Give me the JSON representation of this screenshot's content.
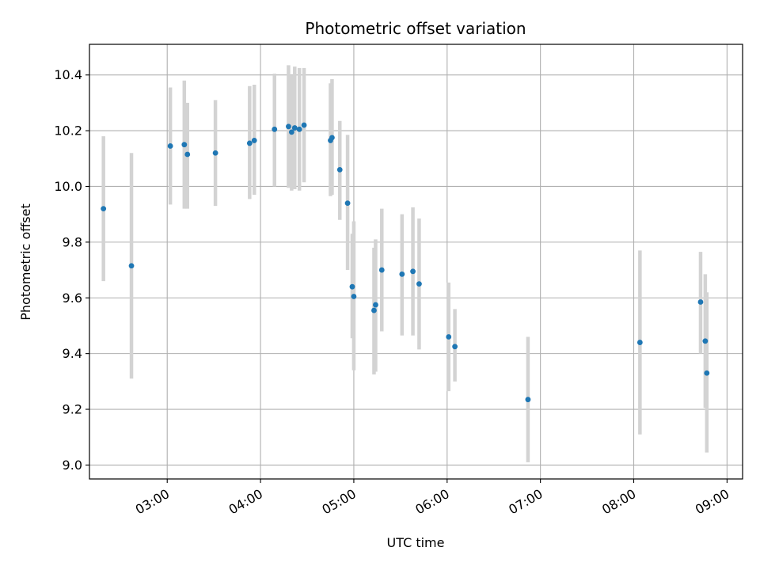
{
  "chart_data": {
    "type": "scatter",
    "title": "Photometric offset variation",
    "xlabel": "UTC time",
    "ylabel": "Photometric offset",
    "grid": true,
    "xlim": [
      "02:10",
      "09:10"
    ],
    "ylim": [
      8.95,
      10.51
    ],
    "x_ticks": [
      "03:00",
      "04:00",
      "05:00",
      "06:00",
      "07:00",
      "08:00",
      "09:00"
    ],
    "y_ticks": [
      9.0,
      9.2,
      9.4,
      9.6,
      9.8,
      10.0,
      10.2,
      10.4
    ],
    "y_tick_labels": [
      "9.0",
      "9.2",
      "9.4",
      "9.6",
      "9.8",
      "10.0",
      "10.2",
      "10.4"
    ],
    "colors": {
      "points": "#1f77b4",
      "errorbars": "#d3d3d3",
      "grid": "#b0b0b0"
    },
    "series": [
      {
        "points": [
          {
            "x": "02:19",
            "y": 9.92,
            "ylo": 9.66,
            "yhi": 10.18
          },
          {
            "x": "02:37",
            "y": 9.715,
            "ylo": 9.31,
            "yhi": 10.12
          },
          {
            "x": "03:02",
            "y": 10.145,
            "ylo": 9.935,
            "yhi": 10.355
          },
          {
            "x": "03:11",
            "y": 10.15,
            "ylo": 9.92,
            "yhi": 10.38
          },
          {
            "x": "03:13",
            "y": 10.115,
            "ylo": 9.92,
            "yhi": 10.3
          },
          {
            "x": "03:31",
            "y": 10.12,
            "ylo": 9.93,
            "yhi": 10.31
          },
          {
            "x": "03:53",
            "y": 10.155,
            "ylo": 9.955,
            "yhi": 10.36
          },
          {
            "x": "03:56",
            "y": 10.165,
            "ylo": 9.97,
            "yhi": 10.365
          },
          {
            "x": "04:09",
            "y": 10.205,
            "ylo": 10.0,
            "yhi": 10.405
          },
          {
            "x": "04:18",
            "y": 10.215,
            "ylo": 9.995,
            "yhi": 10.435
          },
          {
            "x": "04:20",
            "y": 10.195,
            "ylo": 9.985,
            "yhi": 10.4
          },
          {
            "x": "04:22",
            "y": 10.21,
            "ylo": 9.99,
            "yhi": 10.43
          },
          {
            "x": "04:25",
            "y": 10.205,
            "ylo": 9.985,
            "yhi": 10.425
          },
          {
            "x": "04:28",
            "y": 10.22,
            "ylo": 10.015,
            "yhi": 10.425
          },
          {
            "x": "04:45",
            "y": 10.165,
            "ylo": 9.965,
            "yhi": 10.37
          },
          {
            "x": "04:46",
            "y": 10.175,
            "ylo": 9.97,
            "yhi": 10.385
          },
          {
            "x": "04:51",
            "y": 10.06,
            "ylo": 9.88,
            "yhi": 10.235
          },
          {
            "x": "04:56",
            "y": 9.94,
            "ylo": 9.7,
            "yhi": 10.185
          },
          {
            "x": "04:59",
            "y": 9.64,
            "ylo": 9.455,
            "yhi": 9.83
          },
          {
            "x": "05:00",
            "y": 9.605,
            "ylo": 9.34,
            "yhi": 9.875
          },
          {
            "x": "05:13",
            "y": 9.555,
            "ylo": 9.325,
            "yhi": 9.78
          },
          {
            "x": "05:14",
            "y": 9.575,
            "ylo": 9.335,
            "yhi": 9.81
          },
          {
            "x": "05:18",
            "y": 9.7,
            "ylo": 9.48,
            "yhi": 9.92
          },
          {
            "x": "05:31",
            "y": 9.685,
            "ylo": 9.465,
            "yhi": 9.9
          },
          {
            "x": "05:38",
            "y": 9.695,
            "ylo": 9.465,
            "yhi": 9.925
          },
          {
            "x": "05:42",
            "y": 9.65,
            "ylo": 9.415,
            "yhi": 9.885
          },
          {
            "x": "06:01",
            "y": 9.46,
            "ylo": 9.265,
            "yhi": 9.655
          },
          {
            "x": "06:05",
            "y": 9.425,
            "ylo": 9.3,
            "yhi": 9.56
          },
          {
            "x": "06:52",
            "y": 9.235,
            "ylo": 9.01,
            "yhi": 9.46
          },
          {
            "x": "08:04",
            "y": 9.44,
            "ylo": 9.11,
            "yhi": 9.77
          },
          {
            "x": "08:43",
            "y": 9.585,
            "ylo": 9.4,
            "yhi": 9.765
          },
          {
            "x": "08:46",
            "y": 9.445,
            "ylo": 9.205,
            "yhi": 9.685
          },
          {
            "x": "08:47",
            "y": 9.33,
            "ylo": 9.045,
            "yhi": 9.62
          }
        ]
      }
    ]
  }
}
